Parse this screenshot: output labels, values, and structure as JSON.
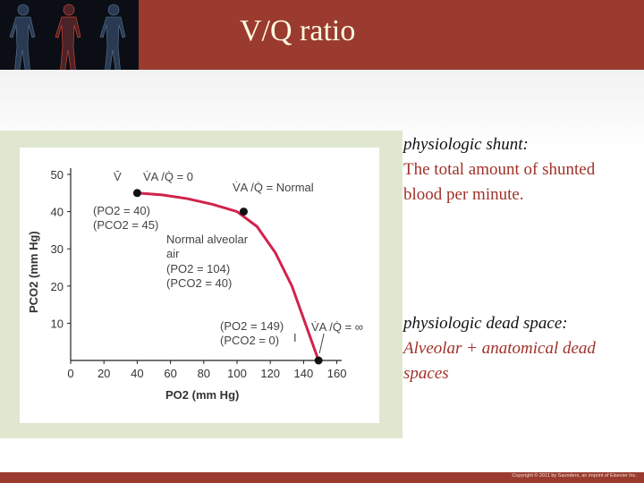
{
  "slide": {
    "title": "V/Q ratio",
    "colors": {
      "header": "#9b3b2f",
      "curve": "#d2234a",
      "accent_text": "#a0322a"
    },
    "header_image": "human-anatomy-figures",
    "copyright": "Copyright © 2011 by Saunders, an imprint of Elsevier Inc."
  },
  "text": {
    "shunt_heading": "physiologic shunt:",
    "shunt_body": "The total amount of shunted blood per minute.",
    "dead_heading": "physiologic dead space:",
    "dead_body": "Alveolar + anatomical dead spaces"
  },
  "chart_data": {
    "type": "line",
    "xlabel": "PO2 (mm Hg)",
    "ylabel": "PCO2 (mm Hg)",
    "xlim": [
      0,
      160
    ],
    "ylim": [
      0,
      50
    ],
    "x_ticks": [
      "0",
      "20",
      "40",
      "60",
      "80",
      "100",
      "120",
      "140",
      "160"
    ],
    "y_ticks": [
      "10",
      "20",
      "30",
      "40",
      "50"
    ],
    "grid": false,
    "curve": {
      "x": [
        40,
        55,
        70,
        85,
        100,
        112,
        123,
        133,
        141,
        149
      ],
      "y": [
        45,
        44.5,
        43.5,
        42,
        40,
        36,
        29,
        20,
        10,
        0
      ]
    },
    "points": [
      {
        "name": "v-bar",
        "x": 40,
        "y": 45,
        "label": "V̄",
        "ratio": "V̇A /Q̇ = 0",
        "po2": "(PO2 = 40)",
        "pco2": "(PCO2 = 45)"
      },
      {
        "name": "normal",
        "x": 104,
        "y": 40,
        "ratio": "V̇A /Q̇ = Normal",
        "title": "Normal alveolar air",
        "po2": "(PO2 = 104)",
        "pco2": "(PCO2 = 40)"
      },
      {
        "name": "inspired",
        "x": 149,
        "y": 0,
        "label": "I",
        "ratio": "V̇A /Q̇ = ∞",
        "po2": "(PO2 = 149)",
        "pco2": "(PCO2 = 0)"
      }
    ]
  }
}
